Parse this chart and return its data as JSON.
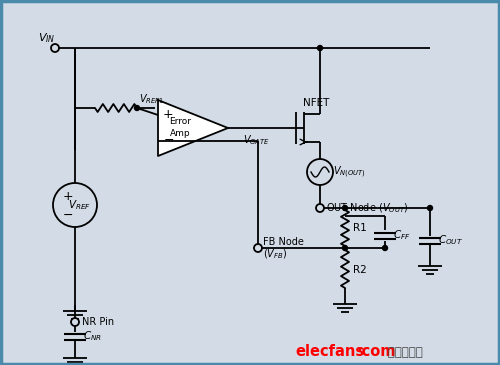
{
  "bg_color": "#d3dce6",
  "border_color": "#4a8aaa",
  "line_color": "#000000",
  "figsize": [
    5.0,
    3.65
  ],
  "dpi": 100,
  "watermark1": "elecfans",
  "watermark2": "·com",
  "watermark3": " 电子发烧友"
}
